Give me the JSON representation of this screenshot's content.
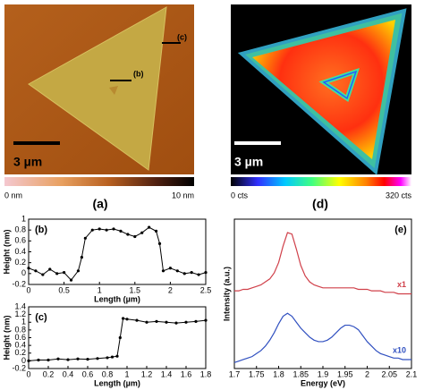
{
  "images": [
    {
      "scale_bar": "3 µm",
      "markers": [
        "(b)",
        "(c)"
      ],
      "colorbar": {
        "min_label": "0 nm",
        "max_label": "10 nm"
      },
      "caption": "(a)"
    },
    {
      "scale_bar": "3 µm",
      "colorbar": {
        "min_label": "0 cts",
        "max_label": "320 cts"
      },
      "caption": "(d)"
    }
  ],
  "chart_data": [
    {
      "type": "line",
      "panel_label": "(b)",
      "x_label": "Length (µm)",
      "y_label": "Height (nm)",
      "color": "#000000",
      "markers": true,
      "x": [
        0,
        0.1,
        0.2,
        0.3,
        0.4,
        0.5,
        0.6,
        0.7,
        0.75,
        0.8,
        0.9,
        1.0,
        1.1,
        1.2,
        1.3,
        1.4,
        1.5,
        1.6,
        1.7,
        1.8,
        1.85,
        1.9,
        2.0,
        2.1,
        2.2,
        2.3,
        2.4,
        2.5
      ],
      "values": [
        0.1,
        0.05,
        -0.02,
        0.08,
        0.0,
        0.02,
        -0.12,
        0.05,
        0.3,
        0.65,
        0.8,
        0.82,
        0.8,
        0.82,
        0.78,
        0.72,
        0.68,
        0.75,
        0.85,
        0.78,
        0.55,
        0.05,
        0.1,
        0.05,
        0.0,
        0.02,
        -0.02,
        0.02
      ],
      "xlim": [
        0,
        2.5
      ],
      "xticks": [
        0,
        0.5,
        1,
        1.5,
        2,
        2.5
      ],
      "ylim": [
        -0.2,
        1
      ],
      "yticks": [
        -0.2,
        0,
        0.2,
        0.4,
        0.6,
        0.8,
        1
      ]
    },
    {
      "type": "line",
      "panel_label": "(c)",
      "x_label": "Length (µm)",
      "y_label": "Height (nm)",
      "color": "#000000",
      "markers": true,
      "x": [
        0,
        0.1,
        0.2,
        0.3,
        0.4,
        0.5,
        0.6,
        0.7,
        0.8,
        0.85,
        0.9,
        0.93,
        0.96,
        1.0,
        1.1,
        1.2,
        1.3,
        1.4,
        1.5,
        1.6,
        1.7,
        1.8
      ],
      "values": [
        0,
        0.02,
        0.02,
        0.05,
        0.03,
        0.05,
        0.04,
        0.06,
        0.08,
        0.1,
        0.12,
        0.6,
        1.1,
        1.08,
        1.05,
        1.0,
        1.02,
        1.0,
        0.98,
        1.0,
        1.02,
        1.05
      ],
      "xlim": [
        0,
        1.8
      ],
      "xticks": [
        0,
        0.2,
        0.4,
        0.6,
        0.8,
        1,
        1.2,
        1.4,
        1.6,
        1.8
      ],
      "ylim": [
        -0.2,
        1.4
      ],
      "yticks": [
        -0.2,
        0,
        0.2,
        0.4,
        0.6,
        0.8,
        1,
        1.2,
        1.4
      ]
    },
    {
      "type": "line",
      "panel_label": "(e)",
      "x_label": "Energy (eV)",
      "y_label": "Intensity (a.u.)",
      "markers": false,
      "x": [
        1.7,
        1.71,
        1.72,
        1.73,
        1.74,
        1.75,
        1.76,
        1.77,
        1.78,
        1.79,
        1.8,
        1.81,
        1.82,
        1.83,
        1.84,
        1.85,
        1.86,
        1.87,
        1.88,
        1.89,
        1.9,
        1.91,
        1.92,
        1.93,
        1.94,
        1.95,
        1.96,
        1.97,
        1.98,
        1.99,
        2.0,
        2.01,
        2.02,
        2.03,
        2.04,
        2.05,
        2.06,
        2.07,
        2.08,
        2.09,
        2.1
      ],
      "series": [
        {
          "name": "x1",
          "color": "#d0404a",
          "values": [
            0.52,
            0.52,
            0.53,
            0.53,
            0.54,
            0.55,
            0.56,
            0.58,
            0.6,
            0.64,
            0.71,
            0.82,
            0.91,
            0.9,
            0.8,
            0.69,
            0.62,
            0.58,
            0.56,
            0.55,
            0.54,
            0.54,
            0.54,
            0.54,
            0.54,
            0.54,
            0.54,
            0.54,
            0.53,
            0.53,
            0.53,
            0.52,
            0.52,
            0.52,
            0.51,
            0.51,
            0.51,
            0.5,
            0.5,
            0.5,
            0.5
          ]
        },
        {
          "name": "x10",
          "color": "#3050c0",
          "values": [
            0.04,
            0.05,
            0.06,
            0.07,
            0.08,
            0.1,
            0.12,
            0.15,
            0.19,
            0.24,
            0.3,
            0.35,
            0.37,
            0.35,
            0.31,
            0.27,
            0.24,
            0.21,
            0.19,
            0.18,
            0.18,
            0.19,
            0.21,
            0.24,
            0.27,
            0.29,
            0.29,
            0.28,
            0.26,
            0.22,
            0.18,
            0.15,
            0.12,
            0.1,
            0.09,
            0.08,
            0.07,
            0.07,
            0.06,
            0.06,
            0.06
          ]
        }
      ],
      "xlim": [
        1.7,
        2.1
      ],
      "xticks": [
        1.7,
        1.75,
        1.8,
        1.85,
        1.9,
        1.95,
        2,
        2.05,
        2.1
      ],
      "ylim": [
        0,
        1
      ]
    }
  ]
}
